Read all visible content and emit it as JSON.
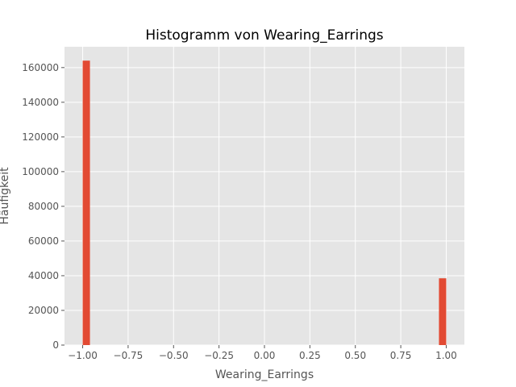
{
  "chart_data": {
    "type": "bar",
    "title": "Histogramm von Wearing_Earrings",
    "xlabel": "Wearing_Earrings",
    "ylabel": "Häufigkeit",
    "xlim": [
      -1.1,
      1.1
    ],
    "ylim": [
      0,
      172000
    ],
    "xticks": [
      -1.0,
      -0.75,
      -0.5,
      -0.25,
      0.0,
      0.25,
      0.5,
      0.75,
      1.0
    ],
    "xtick_labels": [
      "−1.00",
      "−0.75",
      "−0.50",
      "−0.25",
      "0.00",
      "0.25",
      "0.50",
      "0.75",
      "1.00"
    ],
    "yticks": [
      0,
      20000,
      40000,
      60000,
      80000,
      100000,
      120000,
      140000,
      160000
    ],
    "ytick_labels": [
      "0",
      "20000",
      "40000",
      "60000",
      "80000",
      "100000",
      "120000",
      "140000",
      "160000"
    ],
    "bins": [
      {
        "x0": -1.0,
        "x1": -0.96,
        "count": 164000
      },
      {
        "x0": 0.96,
        "x1": 1.0,
        "count": 38500
      }
    ],
    "grid": true,
    "bar_color": "#E24A33",
    "background_color": "#E5E5E5"
  }
}
